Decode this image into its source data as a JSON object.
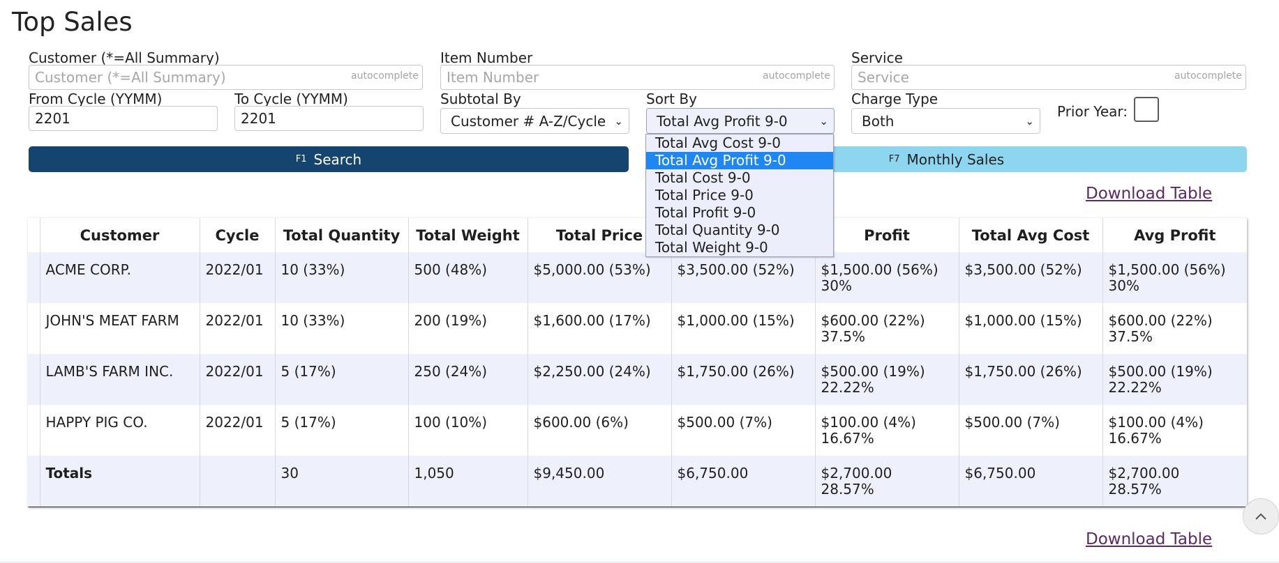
{
  "page": {
    "title": "Top Sales"
  },
  "filters": {
    "customer": {
      "label": "Customer (*=All Summary)",
      "placeholder": "Customer (*=All Summary)",
      "hint": "autocomplete"
    },
    "item_number": {
      "label": "Item Number",
      "placeholder": "Item Number",
      "hint": "autocomplete"
    },
    "service": {
      "label": "Service",
      "placeholder": "Service",
      "hint": "autocomplete"
    },
    "from_cycle": {
      "label": "From Cycle (YYMM)",
      "value": "2201"
    },
    "to_cycle": {
      "label": "To Cycle (YYMM)",
      "value": "2201"
    },
    "subtotal_by": {
      "label": "Subtotal By",
      "value": "Customer # A-Z/Cycle"
    },
    "sort_by": {
      "label": "Sort By",
      "value": "Total Avg Profit 9-0",
      "options": [
        "Total Avg Cost 9-0",
        "Total Avg Profit 9-0",
        "Total Cost 9-0",
        "Total Price 9-0",
        "Total Profit 9-0",
        "Total Quantity 9-0",
        "Total Weight 9-0"
      ]
    },
    "charge_type": {
      "label": "Charge Type",
      "value": "Both"
    },
    "prior_year": {
      "label": "Prior Year:",
      "checked": false
    }
  },
  "buttons": {
    "search": {
      "key": "F1",
      "label": "Search"
    },
    "monthly": {
      "key": "F7",
      "label": "Monthly Sales"
    }
  },
  "links": {
    "download": "Download Table"
  },
  "table": {
    "headers": [
      "Customer",
      "Cycle",
      "Total Quantity",
      "Total Weight",
      "Total Price",
      "",
      "Profit",
      "Total Avg Cost",
      "Avg Profit"
    ],
    "rows": [
      {
        "customer": "ACME CORP.",
        "cycle": "2022/01",
        "qty": "10 (33%)",
        "weight": "500 (48%)",
        "price": "$5,000.00 (53%)",
        "cost": "$3,500.00 (52%)",
        "profit": "$1,500.00 (56%)",
        "profit_pct": "30%",
        "avg_cost": "$3,500.00 (52%)",
        "avg_profit": "$1,500.00 (56%)",
        "avg_profit_pct": "30%"
      },
      {
        "customer": "JOHN'S MEAT FARM",
        "cycle": "2022/01",
        "qty": "10 (33%)",
        "weight": "200 (19%)",
        "price": "$1,600.00 (17%)",
        "cost": "$1,000.00 (15%)",
        "profit": "$600.00 (22%)",
        "profit_pct": "37.5%",
        "avg_cost": "$1,000.00 (15%)",
        "avg_profit": "$600.00 (22%)",
        "avg_profit_pct": "37.5%"
      },
      {
        "customer": "LAMB'S FARM INC.",
        "cycle": "2022/01",
        "qty": "5 (17%)",
        "weight": "250 (24%)",
        "price": "$2,250.00 (24%)",
        "cost": "$1,750.00 (26%)",
        "profit": "$500.00 (19%)",
        "profit_pct": "22.22%",
        "avg_cost": "$1,750.00 (26%)",
        "avg_profit": "$500.00 (19%)",
        "avg_profit_pct": "22.22%"
      },
      {
        "customer": "HAPPY PIG CO.",
        "cycle": "2022/01",
        "qty": "5 (17%)",
        "weight": "100 (10%)",
        "price": "$600.00 (6%)",
        "cost": "$500.00 (7%)",
        "profit": "$100.00 (4%)",
        "profit_pct": "16.67%",
        "avg_cost": "$500.00 (7%)",
        "avg_profit": "$100.00 (4%)",
        "avg_profit_pct": "16.67%"
      }
    ],
    "totals": {
      "label": "Totals",
      "cycle": "",
      "qty": "30",
      "weight": "1,050",
      "price": "$9,450.00",
      "cost": "$6,750.00",
      "profit": "$2,700.00",
      "profit_pct": "28.57%",
      "avg_cost": "$6,750.00",
      "avg_profit": "$2,700.00",
      "avg_profit_pct": "28.57%"
    }
  },
  "icons": {
    "chevron": "chevron-down-icon",
    "scroll_top": "chevron-up-icon"
  }
}
